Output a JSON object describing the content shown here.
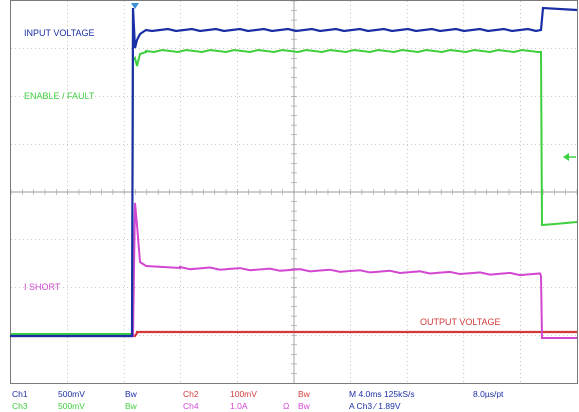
{
  "colors": {
    "ch1": "#1a2fa6",
    "ch3": "#3ecf3e",
    "ch2": "#d23a3a",
    "ch4": "#d247d2",
    "grid": "#9a9a9a",
    "border": "#7a7a7a",
    "trigger_marker": "#3a8fd8",
    "status_text": "#1a2fa6"
  },
  "labels": {
    "input_voltage": "INPUT VOLTAGE",
    "enable_fault": "ENABLE / FAULT",
    "i_short": "I SHORT",
    "output_voltage": "OUTPUT VOLTAGE"
  },
  "status": {
    "row1": {
      "ch1_name": "Ch1",
      "ch1_scale": "500mV",
      "ch1_bw": "Bw",
      "ch2_name": "Ch2",
      "ch2_scale": "100mV",
      "ch2_bw": "Bw",
      "timebase": "M 4.0ms 125kS/s",
      "resolution": "8.0µs/pt"
    },
    "row2": {
      "ch3_name": "Ch3",
      "ch3_scale": "500mV",
      "ch3_bw": "Bw",
      "ch4_name": "Ch4",
      "ch4_scale": "1.0A",
      "ch4_unit": "Ω",
      "ch4_bw": "Bw",
      "trigger": "A  Ch3  ⁄  1.89V"
    }
  }
}
